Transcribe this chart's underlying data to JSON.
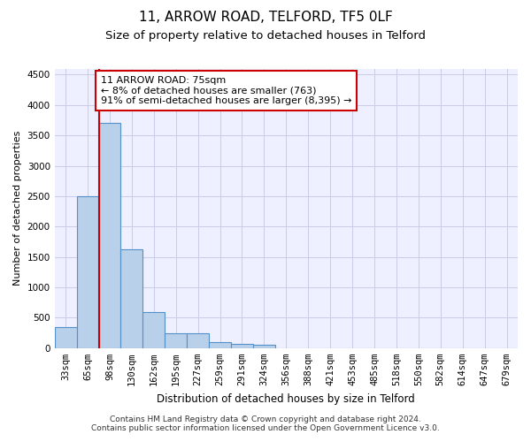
{
  "title": "11, ARROW ROAD, TELFORD, TF5 0LF",
  "subtitle": "Size of property relative to detached houses in Telford",
  "xlabel": "Distribution of detached houses by size in Telford",
  "ylabel": "Number of detached properties",
  "categories": [
    "33sqm",
    "65sqm",
    "98sqm",
    "130sqm",
    "162sqm",
    "195sqm",
    "227sqm",
    "259sqm",
    "291sqm",
    "324sqm",
    "356sqm",
    "388sqm",
    "421sqm",
    "453sqm",
    "485sqm",
    "518sqm",
    "550sqm",
    "582sqm",
    "614sqm",
    "647sqm",
    "679sqm"
  ],
  "values": [
    340,
    2500,
    3700,
    1630,
    590,
    240,
    240,
    100,
    75,
    60,
    0,
    0,
    0,
    0,
    0,
    0,
    0,
    0,
    0,
    0,
    0
  ],
  "bar_color": "#b8d0ea",
  "bar_edge_color": "#5590c8",
  "property_line_x": 1.5,
  "property_line_color": "#cc0000",
  "annotation_text": "11 ARROW ROAD: 75sqm\n← 8% of detached houses are smaller (763)\n91% of semi-detached houses are larger (8,395) →",
  "annotation_box_color": "#cc0000",
  "ylim": [
    0,
    4600
  ],
  "yticks": [
    0,
    500,
    1000,
    1500,
    2000,
    2500,
    3000,
    3500,
    4000,
    4500
  ],
  "footer_line1": "Contains HM Land Registry data © Crown copyright and database right 2024.",
  "footer_line2": "Contains public sector information licensed under the Open Government Licence v3.0.",
  "background_color": "#ffffff",
  "plot_bg_color": "#eef0ff",
  "grid_color": "#c8cce8",
  "title_fontsize": 11,
  "subtitle_fontsize": 9.5,
  "axis_label_fontsize": 8,
  "tick_fontsize": 7.5,
  "annotation_fontsize": 8,
  "footer_fontsize": 6.5
}
